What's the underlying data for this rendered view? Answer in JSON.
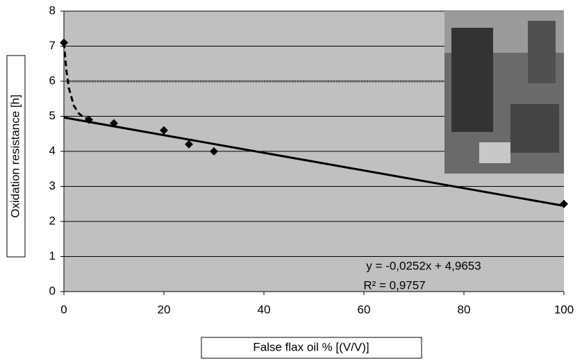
{
  "chart_data": {
    "type": "scatter",
    "x_label": "False flax oil % [(V/V)]",
    "y_label": "Oxidation resistance [h]",
    "x": [
      0,
      5,
      10,
      20,
      25,
      30,
      100
    ],
    "values": [
      7.1,
      4.9,
      4.8,
      4.6,
      4.2,
      4.0,
      2.5
    ],
    "color": "#000000",
    "xlim": [
      0,
      100
    ],
    "xticks": [
      0,
      20,
      40,
      60,
      80,
      100
    ],
    "ylim": [
      0,
      8
    ],
    "yticks": [
      0,
      1,
      2,
      3,
      4,
      5,
      6,
      7,
      8
    ],
    "grid": true,
    "trendline": {
      "slope": -0.0252,
      "intercept": 4.9653,
      "label": "y = -0,0252x + 4,9653",
      "r2_label": "R² = 0,9757"
    },
    "curve": {
      "x": [
        0,
        0.5,
        1,
        2,
        3,
        4,
        5
      ],
      "values": [
        7.1,
        6.3,
        5.8,
        5.3,
        5.08,
        4.97,
        4.92
      ],
      "style": "dashed"
    },
    "reference_line": {
      "value": 6,
      "style": "dotted",
      "color": "#707070"
    }
  }
}
